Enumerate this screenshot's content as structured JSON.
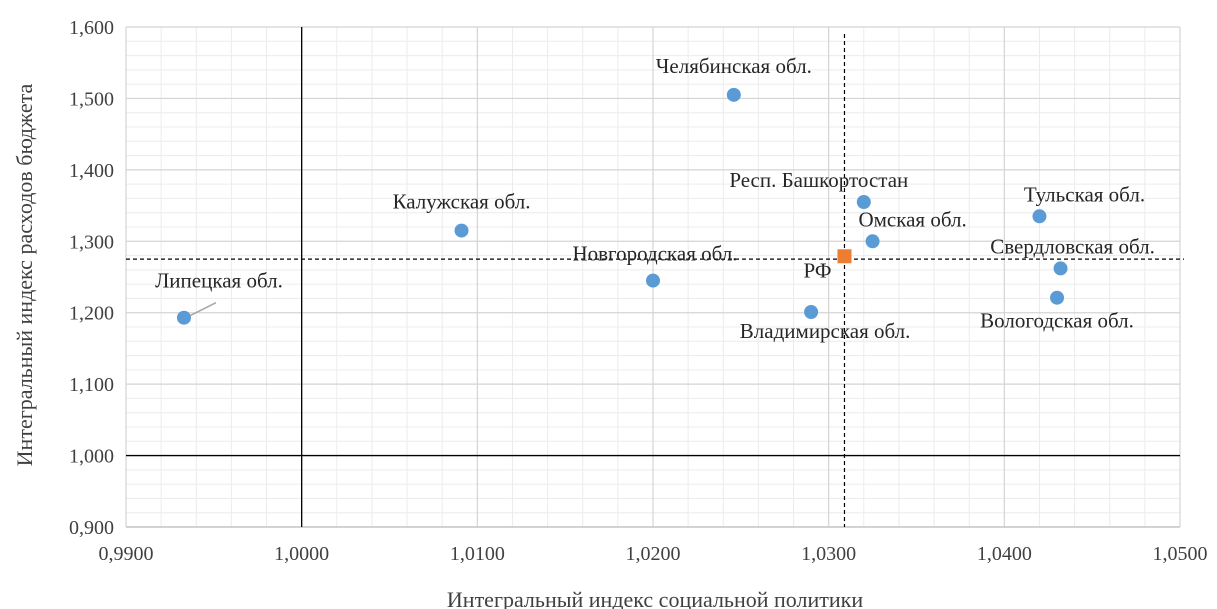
{
  "chart_data": {
    "type": "scatter",
    "xlabel": "Интегральный индекс социальной политики",
    "ylabel": "Интегральный индекс расходов бюджета",
    "xlim": [
      0.99,
      1.05
    ],
    "ylim": [
      0.9,
      1.6
    ],
    "x_ticks": [
      "0,9900",
      "1,0000",
      "1,0100",
      "1,0200",
      "1,0300",
      "1,0400",
      "1,0500"
    ],
    "y_ticks": [
      "0,900",
      "1,000",
      "1,100",
      "1,200",
      "1,300",
      "1,400",
      "1,500",
      "1,600"
    ],
    "grid": true,
    "series": [
      {
        "color": "#5B9BD5",
        "marker": "circle",
        "points": [
          {
            "label": "Липецкая обл.",
            "x": 0.9933,
            "y": 1.193
          },
          {
            "label": "Калужская обл.",
            "x": 1.0091,
            "y": 1.315
          },
          {
            "label": "Новгородская обл.",
            "x": 1.02,
            "y": 1.245
          },
          {
            "label": "Челябинская обл.",
            "x": 1.0246,
            "y": 1.505
          },
          {
            "label": "Владимирская обл.",
            "x": 1.029,
            "y": 1.201
          },
          {
            "label": "Респ. Башкортостан",
            "x": 1.032,
            "y": 1.355
          },
          {
            "label": "Омская обл.",
            "x": 1.0325,
            "y": 1.3
          },
          {
            "label": "Тульская обл.",
            "x": 1.042,
            "y": 1.335
          },
          {
            "label": "Свердловская обл.",
            "x": 1.0432,
            "y": 1.262
          },
          {
            "label": "Вологодская обл.",
            "x": 1.043,
            "y": 1.221
          }
        ]
      },
      {
        "color": "#ED7D31",
        "marker": "square",
        "points": [
          {
            "label": "РФ",
            "x": 1.0309,
            "y": 1.279
          }
        ]
      }
    ],
    "reference_lines": {
      "solid_x": 1.0,
      "solid_y": 1.0,
      "dashed_x": 1.0309,
      "dashed_y": 1.275
    }
  }
}
